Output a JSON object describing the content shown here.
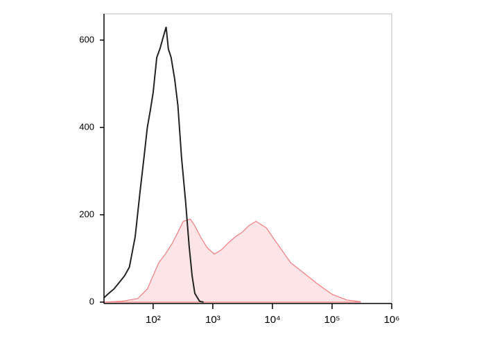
{
  "chart_data": {
    "type": "histogram-overlay",
    "xscale": "log",
    "xlim": [
      15,
      1000000
    ],
    "ylim": [
      0,
      660
    ],
    "xticks": [
      {
        "value": 100,
        "label": "10²"
      },
      {
        "value": 1000,
        "label": "10³"
      },
      {
        "value": 10000,
        "label": "10⁴"
      },
      {
        "value": 100000,
        "label": "10⁵"
      },
      {
        "value": 1000000,
        "label": "10⁶"
      }
    ],
    "yticks": [
      0,
      200,
      400,
      600
    ],
    "series": [
      {
        "color": "#f07c80",
        "fill": "#fde4e6",
        "x": [
          15,
          30,
          55,
          80,
          124,
          160,
          210,
          260,
          320,
          420,
          500,
          620,
          800,
          1060,
          1400,
          1800,
          2400,
          3100,
          4000,
          5300,
          7900,
          11900,
          16000,
          20300,
          34800,
          59000,
          100000,
          175000,
          300000
        ],
        "values": [
          0,
          2,
          8,
          30,
          90,
          110,
          135,
          160,
          185,
          190,
          175,
          150,
          125,
          110,
          120,
          135,
          150,
          160,
          175,
          185,
          170,
          135,
          110,
          90,
          65,
          40,
          18,
          5,
          1
        ]
      },
      {
        "color": "#222222",
        "x": [
          15,
          18,
          22,
          27,
          33,
          40,
          50,
          60,
          70,
          80,
          90,
          100,
          115,
          130,
          150,
          165,
          180,
          200,
          230,
          260,
          300,
          350,
          400,
          450,
          500,
          600,
          700
        ],
        "values": [
          10,
          20,
          30,
          45,
          60,
          80,
          150,
          250,
          330,
          400,
          440,
          480,
          560,
          580,
          610,
          630,
          580,
          560,
          510,
          450,
          330,
          230,
          130,
          60,
          20,
          2,
          0
        ]
      }
    ]
  }
}
